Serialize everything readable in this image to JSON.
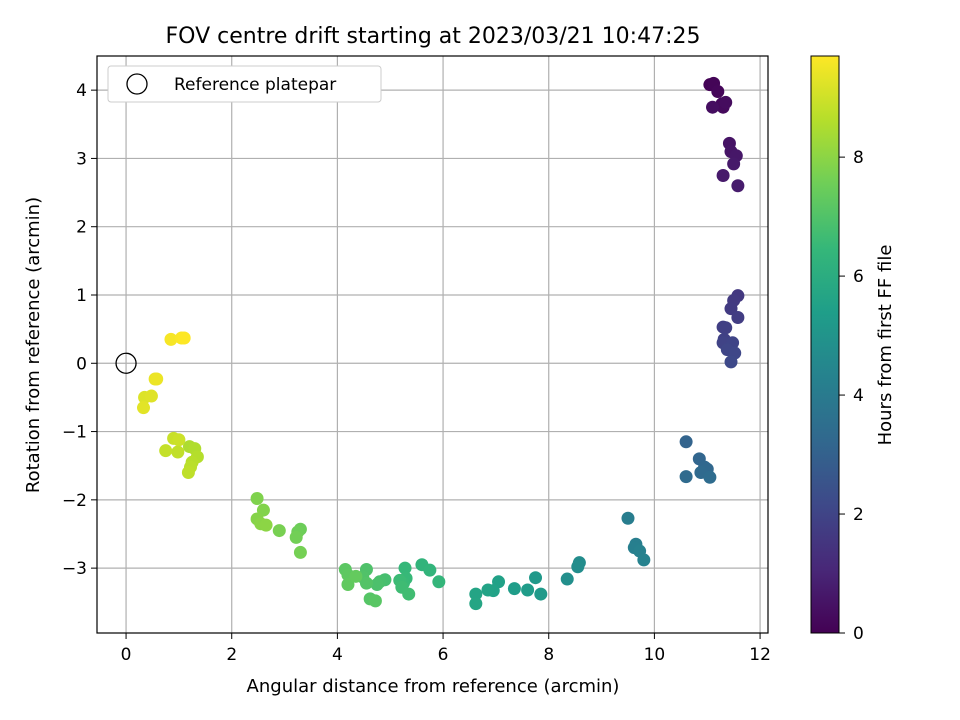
{
  "chart_data": {
    "type": "scatter",
    "title": "FOV centre drift starting at 2023/03/21 10:47:25",
    "xlabel": "Angular distance from reference (arcmin)",
    "ylabel": "Rotation from reference (arcmin)",
    "xlim": [
      -0.55,
      12.15
    ],
    "ylim": [
      -3.95,
      4.5
    ],
    "xticks": [
      0,
      2,
      4,
      6,
      8,
      10,
      12
    ],
    "yticks": [
      -3,
      -2,
      -1,
      0,
      1,
      2,
      3,
      4
    ],
    "grid": true,
    "legend": {
      "position": "top-left",
      "entries": [
        "Reference platepar"
      ]
    },
    "reference_point": {
      "x": 0,
      "y": 0
    },
    "colorbar": {
      "label": "Hours from first FF file",
      "range": [
        0,
        9.7
      ],
      "ticks": [
        0,
        2,
        4,
        6,
        8
      ],
      "colormap": "viridis"
    },
    "colormap_stops": [
      "#440154",
      "#482878",
      "#3e4989",
      "#31688e",
      "#26828e",
      "#1f9e89",
      "#35b779",
      "#6ece58",
      "#b5de2b",
      "#fde725"
    ],
    "series": [
      {
        "points": [
          [
            11.05,
            4.08,
            0.05
          ],
          [
            11.12,
            4.1,
            0.1
          ],
          [
            11.2,
            3.98,
            0.15
          ],
          [
            11.28,
            3.8,
            0.2
          ],
          [
            11.3,
            3.75,
            0.25
          ],
          [
            11.35,
            3.82,
            0.3
          ],
          [
            11.1,
            3.75,
            0.35
          ],
          [
            11.42,
            3.22,
            0.5
          ],
          [
            11.45,
            3.1,
            0.55
          ],
          [
            11.55,
            3.04,
            0.6
          ],
          [
            11.5,
            2.92,
            0.65
          ],
          [
            11.3,
            2.75,
            0.7
          ],
          [
            11.58,
            2.6,
            0.75
          ],
          [
            11.58,
            0.99,
            1.6
          ],
          [
            11.5,
            0.92,
            1.65
          ],
          [
            11.45,
            0.8,
            1.7
          ],
          [
            11.58,
            0.67,
            1.75
          ],
          [
            11.3,
            0.53,
            1.8
          ],
          [
            11.35,
            0.52,
            1.85
          ],
          [
            11.32,
            0.35,
            1.9
          ],
          [
            11.3,
            0.3,
            1.95
          ],
          [
            11.48,
            0.3,
            2.0
          ],
          [
            11.38,
            0.2,
            2.05
          ],
          [
            11.52,
            0.15,
            2.1
          ],
          [
            11.45,
            0.02,
            2.15
          ],
          [
            10.6,
            -1.15,
            3.1
          ],
          [
            10.85,
            -1.4,
            3.15
          ],
          [
            10.95,
            -1.52,
            3.2
          ],
          [
            11.0,
            -1.55,
            3.25
          ],
          [
            10.88,
            -1.6,
            3.3
          ],
          [
            10.6,
            -1.66,
            3.35
          ],
          [
            11.05,
            -1.67,
            3.4
          ],
          [
            9.5,
            -2.27,
            4.1
          ],
          [
            9.65,
            -2.65,
            4.15
          ],
          [
            9.62,
            -2.7,
            4.2
          ],
          [
            9.72,
            -2.75,
            4.25
          ],
          [
            9.8,
            -2.88,
            4.3
          ],
          [
            8.58,
            -2.92,
            4.7
          ],
          [
            8.55,
            -2.98,
            4.75
          ],
          [
            8.35,
            -3.16,
            4.8
          ],
          [
            7.75,
            -3.14,
            5.2
          ],
          [
            7.85,
            -3.38,
            5.25
          ],
          [
            7.6,
            -3.32,
            5.3
          ],
          [
            7.35,
            -3.3,
            5.35
          ],
          [
            7.05,
            -3.2,
            5.5
          ],
          [
            6.95,
            -3.33,
            5.55
          ],
          [
            6.85,
            -3.32,
            5.6
          ],
          [
            6.62,
            -3.38,
            5.65
          ],
          [
            6.62,
            -3.52,
            5.7
          ],
          [
            5.6,
            -2.95,
            6.3
          ],
          [
            5.75,
            -3.03,
            6.35
          ],
          [
            5.92,
            -3.2,
            6.4
          ],
          [
            5.28,
            -3.0,
            6.45
          ],
          [
            5.3,
            -3.15,
            6.5
          ],
          [
            5.25,
            -3.22,
            6.55
          ],
          [
            5.18,
            -3.18,
            6.6
          ],
          [
            5.22,
            -3.28,
            6.65
          ],
          [
            5.35,
            -3.38,
            6.7
          ],
          [
            4.9,
            -3.17,
            6.8
          ],
          [
            4.8,
            -3.2,
            6.85
          ],
          [
            4.75,
            -3.24,
            6.9
          ],
          [
            4.55,
            -3.02,
            6.95
          ],
          [
            4.48,
            -3.13,
            7.0
          ],
          [
            4.55,
            -3.22,
            7.05
          ],
          [
            4.62,
            -3.45,
            7.1
          ],
          [
            4.72,
            -3.48,
            7.15
          ],
          [
            4.15,
            -3.02,
            7.2
          ],
          [
            4.2,
            -3.1,
            7.25
          ],
          [
            4.2,
            -3.24,
            7.3
          ],
          [
            4.35,
            -3.12,
            7.35
          ],
          [
            3.3,
            -2.43,
            7.5
          ],
          [
            3.25,
            -2.47,
            7.55
          ],
          [
            3.22,
            -2.55,
            7.6
          ],
          [
            3.3,
            -2.77,
            7.65
          ],
          [
            2.9,
            -2.45,
            7.7
          ],
          [
            2.48,
            -1.98,
            7.8
          ],
          [
            2.6,
            -2.15,
            7.85
          ],
          [
            2.48,
            -2.28,
            7.9
          ],
          [
            2.55,
            -2.35,
            7.95
          ],
          [
            2.65,
            -2.37,
            8.0
          ],
          [
            1.2,
            -1.22,
            8.5
          ],
          [
            1.3,
            -1.25,
            8.55
          ],
          [
            1.35,
            -1.37,
            8.6
          ],
          [
            1.25,
            -1.45,
            8.65
          ],
          [
            1.22,
            -1.52,
            8.7
          ],
          [
            1.18,
            -1.6,
            8.75
          ],
          [
            0.98,
            -1.3,
            8.8
          ],
          [
            0.75,
            -1.28,
            8.85
          ],
          [
            0.9,
            -1.1,
            8.9
          ],
          [
            1.0,
            -1.12,
            8.95
          ],
          [
            0.35,
            -0.5,
            9.2
          ],
          [
            0.48,
            -0.48,
            9.25
          ],
          [
            0.33,
            -0.65,
            9.3
          ],
          [
            0.55,
            -0.23,
            9.4
          ],
          [
            0.58,
            -0.23,
            9.45
          ],
          [
            0.85,
            0.35,
            9.6
          ],
          [
            1.05,
            0.37,
            9.65
          ],
          [
            1.1,
            0.37,
            9.7
          ]
        ]
      }
    ]
  }
}
